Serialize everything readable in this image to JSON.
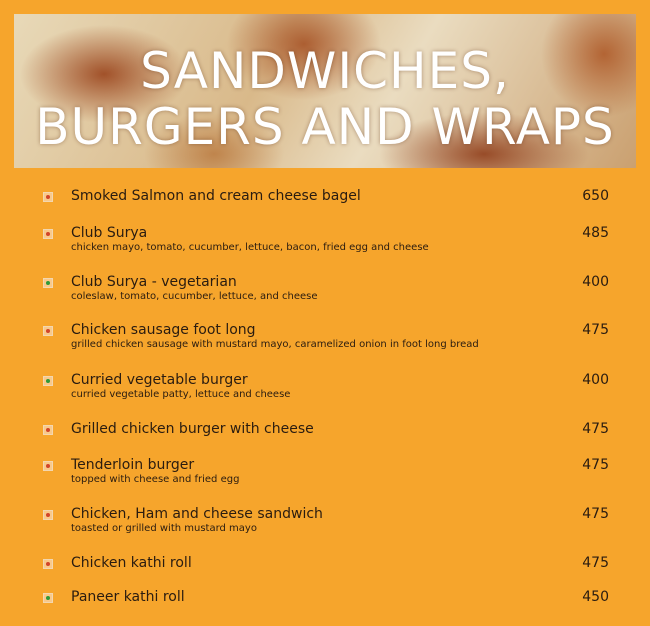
{
  "header": {
    "title_lines": [
      "SANDWICHES,",
      "BURGERS AND WRAPS"
    ]
  },
  "items": [
    {
      "name": "Smoked Salmon and cream cheese bagel",
      "description": null,
      "price": 650,
      "veg": false
    },
    {
      "name": "Club Surya",
      "description": "chicken mayo, tomato, cucumber, lettuce, bacon, fried egg and cheese",
      "price": 485,
      "veg": false
    },
    {
      "name": "Club Surya - vegetarian",
      "description": "coleslaw, tomato, cucumber, lettuce, and cheese",
      "price": 400,
      "veg": true
    },
    {
      "name": "Chicken sausage foot long",
      "description": "grilled chicken sausage with mustard mayo, caramelized onion in foot long bread",
      "price": 475,
      "veg": false
    },
    {
      "name": "Curried vegetable burger",
      "description": "curried vegetable patty, lettuce and cheese",
      "price": 400,
      "veg": true
    },
    {
      "name": "Grilled chicken burger with cheese",
      "description": null,
      "price": 475,
      "veg": false
    },
    {
      "name": "Tenderloin burger",
      "description": "topped with cheese and fried egg",
      "price": 475,
      "veg": false
    },
    {
      "name": "Chicken, Ham and cheese sandwich",
      "description": "toasted or grilled with mustard mayo",
      "price": 475,
      "veg": false
    },
    {
      "name": "Chicken kathi roll",
      "description": null,
      "price": 475,
      "veg": false
    },
    {
      "name": "Paneer kathi roll",
      "description": null,
      "price": 450,
      "veg": true
    }
  ]
}
